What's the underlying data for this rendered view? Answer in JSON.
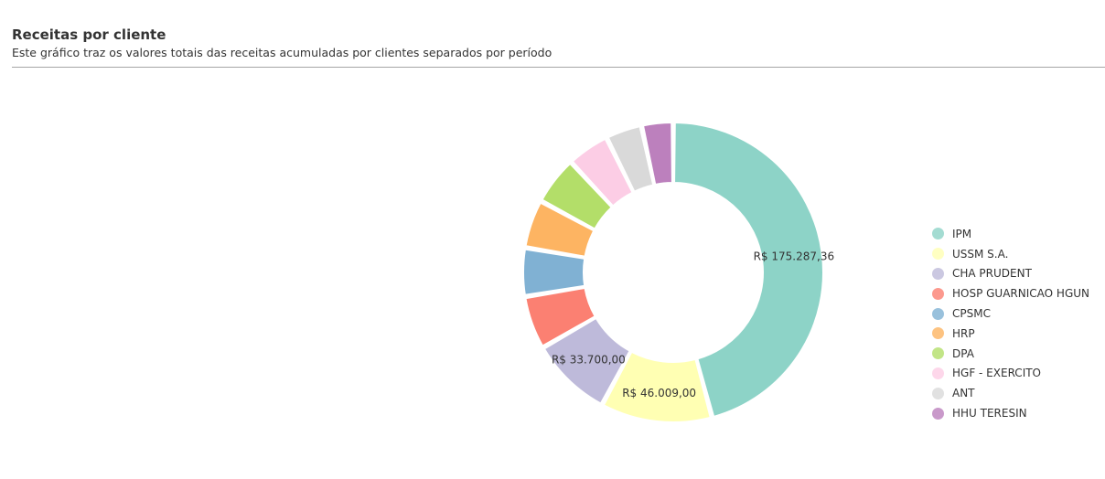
{
  "header": {
    "title": "Receitas por cliente",
    "subtitle": "Este gráfico traz os valores totais das receitas acumuladas por clientes separados por período"
  },
  "chart_data": {
    "type": "pie",
    "donut": true,
    "legend_position": "right",
    "series": [
      {
        "name": "IPM",
        "value": 175287.36,
        "label": "R$ 175.287,36",
        "color": "#8dd3c7"
      },
      {
        "name": "USSM S.A.",
        "value": 46009.0,
        "label": "R$ 46.009,00",
        "color": "#ffffb3"
      },
      {
        "name": "CHA PRUDENT",
        "value": 33700.0,
        "label": "R$ 33.700,00",
        "color": "#bebada"
      },
      {
        "name": "HOSP GUARNICAO HGUN",
        "value": 22000,
        "label": "",
        "color": "#fb8072"
      },
      {
        "name": "CPSMC",
        "value": 20000,
        "label": "",
        "color": "#80b1d3"
      },
      {
        "name": "HRP",
        "value": 20000,
        "label": "",
        "color": "#fdb462"
      },
      {
        "name": "DPA",
        "value": 20000,
        "label": "",
        "color": "#b3de69"
      },
      {
        "name": "HGF - EXERCITO",
        "value": 17500,
        "label": "",
        "color": "#fccde5"
      },
      {
        "name": "ANT",
        "value": 15000,
        "label": "",
        "color": "#d9d9d9"
      },
      {
        "name": "HHU TERESIN",
        "value": 13000,
        "label": "",
        "color": "#bc80bd"
      }
    ]
  }
}
